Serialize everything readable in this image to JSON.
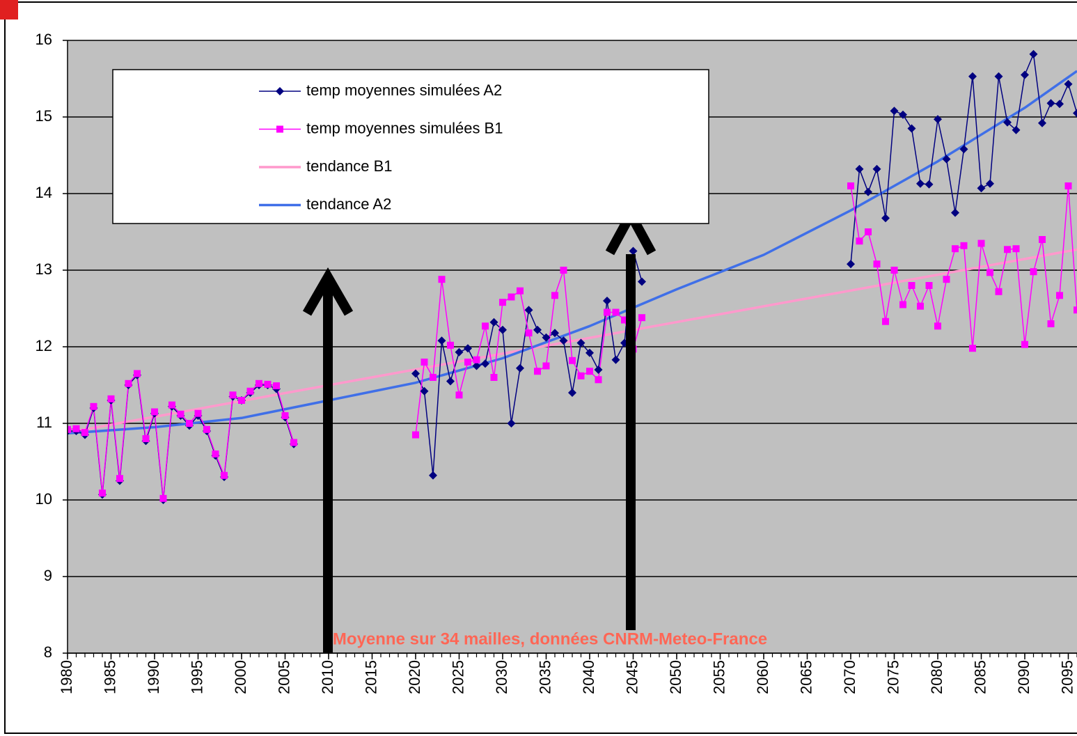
{
  "chart_data": {
    "type": "line",
    "annotation": "Moyenne sur 34 mailles, données CNRM-Meteo-France",
    "x": [
      1980,
      1981,
      1982,
      1983,
      1984,
      1985,
      1986,
      1987,
      1988,
      1989,
      1990,
      1991,
      1992,
      1993,
      1994,
      1995,
      1996,
      1997,
      1998,
      1999,
      2000,
      2001,
      2002,
      2003,
      2004,
      2005,
      2006,
      2007,
      2008,
      2009,
      2010,
      2011,
      2012,
      2013,
      2014,
      2015,
      2016,
      2017,
      2018,
      2019,
      2020,
      2021,
      2022,
      2023,
      2024,
      2025,
      2026,
      2027,
      2028,
      2029,
      2030,
      2031,
      2032,
      2033,
      2034,
      2035,
      2036,
      2037,
      2038,
      2039,
      2040,
      2041,
      2042,
      2043,
      2044,
      2045,
      2046,
      2047,
      2048,
      2049,
      2050,
      2051,
      2052,
      2053,
      2054,
      2055,
      2056,
      2057,
      2058,
      2059,
      2060,
      2061,
      2062,
      2063,
      2064,
      2065,
      2066,
      2067,
      2068,
      2069,
      2070,
      2071,
      2072,
      2073,
      2074,
      2075,
      2076,
      2077,
      2078,
      2079,
      2080,
      2081,
      2082,
      2083,
      2084,
      2085,
      2086,
      2087,
      2088,
      2089,
      2090,
      2091,
      2092,
      2093,
      2094,
      2095,
      2096
    ],
    "series": [
      {
        "name": "temp moyennes simulées A2",
        "color": "#000080",
        "marker": "diamond",
        "values": [
          10.9,
          10.9,
          10.85,
          11.2,
          10.07,
          11.3,
          10.25,
          11.5,
          11.63,
          10.77,
          11.13,
          10.0,
          11.22,
          11.1,
          10.97,
          11.1,
          10.9,
          10.58,
          10.3,
          11.35,
          11.3,
          11.4,
          11.5,
          11.5,
          11.45,
          11.08,
          10.73,
          null,
          null,
          null,
          null,
          null,
          null,
          null,
          null,
          null,
          null,
          null,
          null,
          null,
          11.65,
          11.42,
          10.32,
          12.08,
          11.55,
          11.93,
          11.98,
          11.75,
          11.78,
          12.32,
          12.22,
          11.0,
          11.72,
          12.48,
          12.22,
          12.12,
          12.18,
          12.08,
          11.4,
          12.05,
          11.92,
          11.7,
          12.6,
          11.83,
          12.05,
          13.25,
          12.85,
          null,
          null,
          null,
          null,
          null,
          null,
          null,
          null,
          null,
          null,
          null,
          null,
          null,
          null,
          null,
          null,
          null,
          null,
          null,
          null,
          null,
          null,
          null,
          13.08,
          14.32,
          14.02,
          14.32,
          13.68,
          15.08,
          15.03,
          14.85,
          14.13,
          14.12,
          14.97,
          14.45,
          13.75,
          14.58,
          15.53,
          14.07,
          14.13,
          15.53,
          14.93,
          14.83,
          15.55,
          15.82,
          14.92,
          15.18,
          15.17,
          15.43,
          15.05
        ]
      },
      {
        "name": "temp moyennes simulées B1",
        "color": "#ff00ff",
        "marker": "square",
        "values": [
          10.92,
          10.93,
          10.88,
          11.22,
          10.09,
          11.32,
          10.28,
          11.52,
          11.65,
          10.8,
          11.15,
          10.02,
          11.24,
          11.12,
          11.0,
          11.13,
          10.92,
          10.6,
          10.32,
          11.37,
          11.3,
          11.42,
          11.52,
          11.51,
          11.49,
          11.1,
          10.75,
          null,
          null,
          null,
          null,
          null,
          null,
          null,
          null,
          null,
          null,
          null,
          null,
          null,
          10.85,
          11.8,
          11.6,
          12.88,
          12.02,
          11.37,
          11.8,
          11.83,
          12.27,
          11.6,
          12.58,
          12.65,
          12.73,
          12.18,
          11.68,
          11.75,
          12.67,
          13.0,
          11.82,
          11.62,
          11.68,
          11.57,
          12.45,
          12.45,
          12.35,
          11.97,
          12.38,
          null,
          null,
          null,
          null,
          null,
          null,
          null,
          null,
          null,
          null,
          null,
          null,
          null,
          null,
          null,
          null,
          null,
          null,
          null,
          null,
          null,
          null,
          null,
          14.1,
          13.38,
          13.5,
          13.08,
          12.33,
          13.0,
          12.55,
          12.8,
          12.53,
          12.8,
          12.27,
          12.88,
          13.28,
          13.32,
          11.98,
          13.35,
          12.97,
          12.72,
          13.27,
          13.28,
          12.03,
          12.98,
          13.4,
          12.3,
          12.67,
          14.1,
          12.48
        ]
      },
      {
        "name": "tendance B1",
        "color": "#ff99cc",
        "x": [
          1980,
          2096
        ],
        "values": [
          10.88,
          13.27
        ]
      },
      {
        "name": "tendance A2",
        "color": "#3f6fe8",
        "x": [
          1980,
          1990,
          2000,
          2010,
          2020,
          2030,
          2040,
          2050,
          2060,
          2070,
          2080,
          2090,
          2096
        ],
        "values": [
          10.87,
          10.95,
          11.07,
          11.3,
          11.53,
          11.85,
          12.27,
          12.75,
          13.2,
          13.78,
          14.42,
          15.12,
          15.6
        ]
      }
    ],
    "xlim": [
      1980,
      2096
    ],
    "xticks": [
      1980,
      1985,
      1990,
      1995,
      2000,
      2005,
      2010,
      2015,
      2020,
      2025,
      2030,
      2035,
      2040,
      2045,
      2050,
      2055,
      2060,
      2065,
      2070,
      2075,
      2080,
      2085,
      2090,
      2095
    ],
    "ylim": [
      8,
      16
    ],
    "yticks": [
      8,
      9,
      10,
      11,
      12,
      13,
      14,
      15,
      16
    ],
    "grid": true
  }
}
